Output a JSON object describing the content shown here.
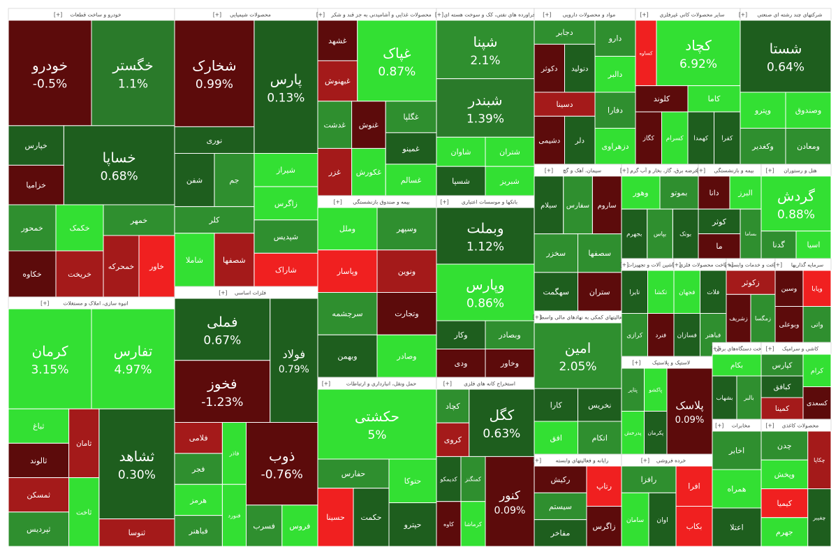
{
  "expand_label": "[+]",
  "sectors": [
    {
      "title": "خودرو و ساخت قطعات",
      "tiles": [
        {
          "label": "خگستر",
          "change": "1.1%",
          "color": "#2a7a2a"
        },
        {
          "label": "خودرو",
          "change": "-0.5%",
          "color": "#5c0b0b"
        },
        {
          "label": "خساپا",
          "change": "0.68%",
          "color": "#1e5e1e"
        },
        {
          "label": "خپارس",
          "color": "#1e5e1e"
        },
        {
          "label": "خزامیا",
          "color": "#5c0b0b"
        },
        {
          "label": "خمهر",
          "color": "#2f8f2f"
        },
        {
          "label": "خاور",
          "color": "#f02020"
        },
        {
          "label": "خمحرکه",
          "color": "#a41a1a"
        },
        {
          "label": "خکمک",
          "color": "#33e033"
        },
        {
          "label": "خریخت",
          "color": "#a41a1a"
        },
        {
          "label": "خمحور",
          "color": "#2f8f2f"
        },
        {
          "label": "خکاوه",
          "color": "#5c0b0b"
        }
      ]
    },
    {
      "title": "محصولات شیمیایی",
      "tiles": [
        {
          "label": "پارس",
          "change": "0.13%",
          "color": "#1e5e1e"
        },
        {
          "label": "شخارک",
          "change": "0.99%",
          "color": "#5c0b0b"
        },
        {
          "label": "نوری",
          "color": "#1e5e1e"
        },
        {
          "label": "شیراز",
          "color": "#33e033"
        },
        {
          "label": "زاگرس",
          "color": "#33e033"
        },
        {
          "label": "شپدیس",
          "color": "#2f8f2f"
        },
        {
          "label": "شاراک",
          "color": "#f02020"
        },
        {
          "label": "جم",
          "color": "#2f8f2f"
        },
        {
          "label": "شفن",
          "color": "#1e5e1e"
        },
        {
          "label": "کلر",
          "color": "#2f8f2f"
        },
        {
          "label": "شصفها",
          "color": "#a41a1a"
        },
        {
          "label": "شاملا",
          "color": "#33e033"
        }
      ]
    },
    {
      "title": "محصولات غذایی و آشامیدنی به جز قند و شکر",
      "tiles": [
        {
          "label": "غپاک",
          "change": "0.87%",
          "color": "#33e033"
        },
        {
          "label": "غشهد",
          "color": "#5c0b0b"
        },
        {
          "label": "غبهنوش",
          "color": "#a41a1a"
        },
        {
          "label": "غگلپا",
          "color": "#2f8f2f"
        },
        {
          "label": "غمینو",
          "color": "#1e5e1e"
        },
        {
          "label": "غسالم",
          "color": "#33e033"
        },
        {
          "label": "غنوش",
          "color": "#5c0b0b"
        },
        {
          "label": "غدشت",
          "color": "#2f8f2f"
        },
        {
          "label": "غکورش",
          "color": "#33e033"
        },
        {
          "label": "غزر",
          "color": "#a41a1a"
        }
      ]
    },
    {
      "title": "فراورده های نفتی، کک و سوخت هسته ای",
      "tiles": [
        {
          "label": "شپنا",
          "change": "2.1%",
          "color": "#2f8f2f"
        },
        {
          "label": "شبندر",
          "change": "1.39%",
          "color": "#2a7a2a"
        },
        {
          "label": "شتران",
          "color": "#33e033"
        },
        {
          "label": "شبریز",
          "color": "#33e033"
        },
        {
          "label": "شاوان",
          "color": "#33e033"
        },
        {
          "label": "شسپا",
          "color": "#1e5e1e"
        }
      ]
    },
    {
      "title": "مواد و محصولات دارویی",
      "tiles": [
        {
          "label": "دارو",
          "color": "#2f8f2f"
        },
        {
          "label": "دالبر",
          "color": "#33e033"
        },
        {
          "label": "دجابر",
          "color": "#2f8f2f"
        },
        {
          "label": "دتولید",
          "color": "#1e5e1e"
        },
        {
          "label": "دکوثر",
          "color": "#5c0b0b"
        },
        {
          "label": "دفارا",
          "color": "#2f8f2f"
        },
        {
          "label": "دزهراوی",
          "color": "#33e033"
        },
        {
          "label": "دسینا",
          "color": "#a41a1a"
        },
        {
          "label": "دلر",
          "color": "#1e5e1e"
        },
        {
          "label": "دشیمی",
          "color": "#5c0b0b"
        }
      ]
    },
    {
      "title": "سایر محصولات کانی غیرفلزی",
      "tiles": [
        {
          "label": "کچاد",
          "change": "6.92%",
          "color": "#33e033"
        },
        {
          "label": "کساوه",
          "color": "#f02020"
        },
        {
          "label": "کاما",
          "color": "#33e033"
        },
        {
          "label": "کفرا",
          "color": "#1e5e1e"
        },
        {
          "label": "کهمدا",
          "color": "#1e5e1e"
        },
        {
          "label": "کلوند",
          "color": "#5c0b0b"
        },
        {
          "label": "کسرام",
          "color": "#33e033"
        },
        {
          "label": "کگاز",
          "color": "#5c0b0b"
        }
      ]
    },
    {
      "title": "شرکتهای چند رشته ای صنعتی",
      "tiles": [
        {
          "label": "شستا",
          "change": "0.64%",
          "color": "#1e5e1e"
        },
        {
          "label": "وصندوق",
          "color": "#33e033"
        },
        {
          "label": "ومعادن",
          "color": "#2f8f2f"
        },
        {
          "label": "وپترو",
          "color": "#33e033"
        },
        {
          "label": "وکغدیر",
          "color": "#2f8f2f"
        }
      ]
    },
    {
      "title": "انبوه سازی، املاک و مستغلات",
      "tiles": [
        {
          "label": "تفارس",
          "change": "4.97%",
          "color": "#33e033"
        },
        {
          "label": "کرمان",
          "change": "3.15%",
          "color": "#33e033"
        },
        {
          "label": "ثشاهد",
          "change": "0.30%",
          "color": "#1e5e1e"
        },
        {
          "label": "ثنوسا",
          "color": "#a41a1a"
        },
        {
          "label": "ثامان",
          "color": "#a41a1a"
        },
        {
          "label": "ثباغ",
          "color": "#33e033"
        },
        {
          "label": "ثالوند",
          "color": "#5c0b0b"
        },
        {
          "label": "ثاخت",
          "color": "#33e033"
        },
        {
          "label": "ثمسکن",
          "color": "#a41a1a"
        },
        {
          "label": "ثپردیس",
          "color": "#2f8f2f"
        }
      ]
    },
    {
      "title": "فلزات اساسی",
      "tiles": [
        {
          "label": "فولاد",
          "change": "0.79%",
          "color": "#1e5e1e"
        },
        {
          "label": "فملی",
          "change": "0.67%",
          "color": "#1e5e1e"
        },
        {
          "label": "فخوز",
          "change": "-1.23%",
          "color": "#5c0b0b"
        },
        {
          "label": "ذوب",
          "change": "-0.76%",
          "color": "#5c0b0b"
        },
        {
          "label": "فروس",
          "color": "#33e033"
        },
        {
          "label": "فسرب",
          "color": "#2f8f2f"
        },
        {
          "label": "فاذر",
          "color": "#33e033"
        },
        {
          "label": "فلامی",
          "color": "#a41a1a"
        },
        {
          "label": "فجر",
          "color": "#2f8f2f"
        },
        {
          "label": "فنورد",
          "color": "#33e033"
        },
        {
          "label": "هرمز",
          "color": "#33e033"
        },
        {
          "label": "فباهنر",
          "color": "#2f8f2f"
        }
      ]
    },
    {
      "title": "بیمه و صندوق بازنشستگی",
      "tiles": [
        {
          "label": "وسپهر",
          "color": "#2f8f2f"
        },
        {
          "label": "ونوین",
          "color": "#a41a1a"
        },
        {
          "label": "وملل",
          "color": "#33e033"
        },
        {
          "label": "وپاسار",
          "color": "#f02020"
        },
        {
          "label": "وتجارت",
          "color": "#5c0b0b"
        },
        {
          "label": "وصادر",
          "color": "#33e033"
        },
        {
          "label": "سرچشمه",
          "color": "#2f8f2f"
        },
        {
          "label": "وبهمن",
          "color": "#1e5e1e"
        }
      ]
    },
    {
      "title": "بانکها و موسسات اعتباری",
      "tiles": [
        {
          "label": "وبملت",
          "change": "1.12%",
          "color": "#1e5e1e"
        },
        {
          "label": "وپارس",
          "change": "0.86%",
          "color": "#33e033"
        },
        {
          "label": "وبصادر",
          "color": "#2f8f2f"
        },
        {
          "label": "وخاور",
          "color": "#5c0b0b"
        },
        {
          "label": "وکار",
          "color": "#1e5e1e"
        },
        {
          "label": "ودی",
          "color": "#5c0b0b"
        }
      ]
    },
    {
      "title": "حمل ونقل، انبارداری و ارتباطات",
      "tiles": [
        {
          "label": "حکشتی",
          "change": "5%",
          "color": "#33e033"
        },
        {
          "label": "حتوکا",
          "color": "#33e033"
        },
        {
          "label": "حپترو",
          "color": "#1e5e1e"
        },
        {
          "label": "حفارس",
          "color": "#2f8f2f"
        },
        {
          "label": "حکمت",
          "color": "#1e5e1e"
        },
        {
          "label": "حسینا",
          "color": "#f02020"
        }
      ]
    },
    {
      "title": "استخراج کانه های فلزی",
      "tiles": [
        {
          "label": "کگل",
          "change": "0.63%",
          "color": "#1e5e1e"
        },
        {
          "label": "کچاد",
          "color": "#2f8f2f"
        },
        {
          "label": "کروی",
          "color": "#a41a1a"
        },
        {
          "label": "کنور",
          "change": "0.09%",
          "color": "#5c0b0b"
        },
        {
          "label": "کمنگنز",
          "color": "#2f8f2f"
        },
        {
          "label": "کدیمکو",
          "color": "#1e5e1e"
        },
        {
          "label": "کرماشا",
          "color": "#33e033"
        },
        {
          "label": "کاوه",
          "color": "#5c0b0b"
        }
      ]
    },
    {
      "title": "سیمان، آهک و گچ",
      "tiles": [
        {
          "label": "ساروم",
          "color": "#5c0b0b"
        },
        {
          "label": "سفارس",
          "color": "#2f8f2f"
        },
        {
          "label": "سیلام",
          "color": "#1e5e1e"
        },
        {
          "label": "سصفها",
          "color": "#2f8f2f"
        },
        {
          "label": "ستران",
          "color": "#5c0b0b"
        },
        {
          "label": "سخزر",
          "color": "#2f8f2f"
        },
        {
          "label": "سهگمت",
          "color": "#1e5e1e"
        }
      ]
    },
    {
      "title": "عرضه برق، گاز، بخار و آب گرم",
      "tiles": [
        {
          "label": "بموتو",
          "color": "#2f8f2f"
        },
        {
          "label": "وهور",
          "color": "#33e033"
        },
        {
          "label": "بوتک",
          "color": "#1e5e1e"
        },
        {
          "label": "بپاس",
          "color": "#2f8f2f"
        },
        {
          "label": "بجهرم",
          "color": "#1e5e1e"
        }
      ]
    },
    {
      "title": "بیمه و بازنشستگی",
      "tiles": [
        {
          "label": "البرز",
          "color": "#33e033"
        },
        {
          "label": "دانا",
          "color": "#5c0b0b"
        },
        {
          "label": "بساما",
          "color": "#2f8f2f"
        },
        {
          "label": "کوثر",
          "color": "#1e5e1e"
        },
        {
          "label": "ما",
          "color": "#5c0b0b"
        }
      ]
    },
    {
      "title": "هتل و رستوران",
      "tiles": [
        {
          "label": "گردش",
          "change": "0.88%",
          "color": "#33e033"
        },
        {
          "label": "اسیا",
          "color": "#33e033"
        },
        {
          "label": "گدنا",
          "color": "#2f8f2f"
        }
      ]
    },
    {
      "title": "فعالیتهای کمکی به نهادهای مالی واسط",
      "tiles": [
        {
          "label": "امین",
          "change": "2.05%",
          "color": "#2f8f2f"
        },
        {
          "label": "نخریس",
          "color": "#1e5e1e"
        },
        {
          "label": "اتکام",
          "color": "#2f8f2f"
        },
        {
          "label": "کارا",
          "color": "#1e5e1e"
        },
        {
          "label": "افق",
          "color": "#33e033"
        }
      ]
    },
    {
      "title": "رایانه و فعالیتهای وابسته",
      "tiles": [
        {
          "label": "رتاپ",
          "color": "#f02020"
        },
        {
          "label": "زاگرس",
          "color": "#5c0b0b"
        },
        {
          "label": "رکیش",
          "color": "#5c0b0b"
        },
        {
          "label": "سیستم",
          "color": "#2f8f2f"
        },
        {
          "label": "مفاخر",
          "color": "#1e5e1e"
        }
      ]
    },
    {
      "title": "ماشین آلات و تجهیزات",
      "tiles": [
        {
          "label": "تکشا",
          "color": "#33e033"
        },
        {
          "label": "تایرا",
          "color": "#1e5e1e"
        },
        {
          "label": "فنرد",
          "color": "#5c0b0b"
        },
        {
          "label": "کرازی",
          "color": "#2f8f2f"
        }
      ]
    },
    {
      "title": "ساخت محصولات فلزی",
      "tiles": [
        {
          "label": "فلات",
          "color": "#1e5e1e"
        },
        {
          "label": "فجهان",
          "color": "#33e033"
        },
        {
          "label": "فباهنر",
          "color": "#2f8f2f"
        },
        {
          "label": "فسازان",
          "color": "#1e5e1e"
        }
      ]
    },
    {
      "title": "زراعت و خدمات وابسته",
      "tiles": [
        {
          "label": "زکوثر",
          "color": "#a41a1a"
        },
        {
          "label": "زمگسا",
          "color": "#2f8f2f"
        },
        {
          "label": "زشریف",
          "color": "#5c0b0b"
        }
      ]
    },
    {
      "title": "سرمایه گذاریها",
      "tiles": [
        {
          "label": "وپایا",
          "color": "#f02020"
        },
        {
          "label": "وسین",
          "color": "#5c0b0b"
        },
        {
          "label": "واتی",
          "color": "#2f8f2f"
        },
        {
          "label": "وبوعلی",
          "color": "#5c0b0b"
        }
      ]
    },
    {
      "title": "لاستیک و پلاستیک",
      "tiles": [
        {
          "label": "پلاسک",
          "change": "0.09%",
          "color": "#5c0b0b"
        },
        {
          "label": "پاکشو",
          "color": "#33e033"
        },
        {
          "label": "پتایر",
          "color": "#2f8f2f"
        },
        {
          "label": "پکرمان",
          "color": "#1e5e1e"
        },
        {
          "label": "پدرخش",
          "color": "#33e033"
        }
      ]
    },
    {
      "title": "ساخت دستگاه‌های برقی",
      "tiles": [
        {
          "label": "بکام",
          "color": "#33e033"
        },
        {
          "label": "بالبر",
          "color": "#2f8f2f"
        },
        {
          "label": "بشهاب",
          "color": "#1e5e1e"
        }
      ]
    },
    {
      "title": "کاشی و سرامیک",
      "tiles": [
        {
          "label": "کرام",
          "color": "#33e033"
        },
        {
          "label": "کسعدی",
          "color": "#5c0b0b"
        },
        {
          "label": "کپارس",
          "color": "#2f8f2f"
        },
        {
          "label": "کبافق",
          "color": "#1e5e1e"
        },
        {
          "label": "کمینا",
          "color": "#a41a1a"
        }
      ]
    },
    {
      "title": "خرده فروشی",
      "tiles": [
        {
          "label": "افرا",
          "color": "#f02020"
        },
        {
          "label": "بکاب",
          "color": "#f02020"
        },
        {
          "label": "رافزا",
          "color": "#2f8f2f"
        },
        {
          "label": "اوان",
          "color": "#1e5e1e"
        },
        {
          "label": "سامان",
          "color": "#33e033"
        }
      ]
    },
    {
      "title": "مخابرات",
      "tiles": [
        {
          "label": "اخابر",
          "color": "#2f8f2f"
        },
        {
          "label": "همراه",
          "color": "#33e033"
        },
        {
          "label": "اعتلا",
          "color": "#1e5e1e"
        }
      ]
    },
    {
      "title": "محصولات کاغذی",
      "tiles": [
        {
          "label": "چکاپا",
          "color": "#a41a1a"
        },
        {
          "label": "چدن",
          "color": "#2f8f2f"
        },
        {
          "label": "وپخش",
          "color": "#33e033"
        },
        {
          "label": "چفیبر",
          "color": "#1e5e1e"
        },
        {
          "label": "کیمیا",
          "color": "#f02020"
        },
        {
          "label": "جهرم",
          "color": "#33e033"
        }
      ]
    }
  ]
}
